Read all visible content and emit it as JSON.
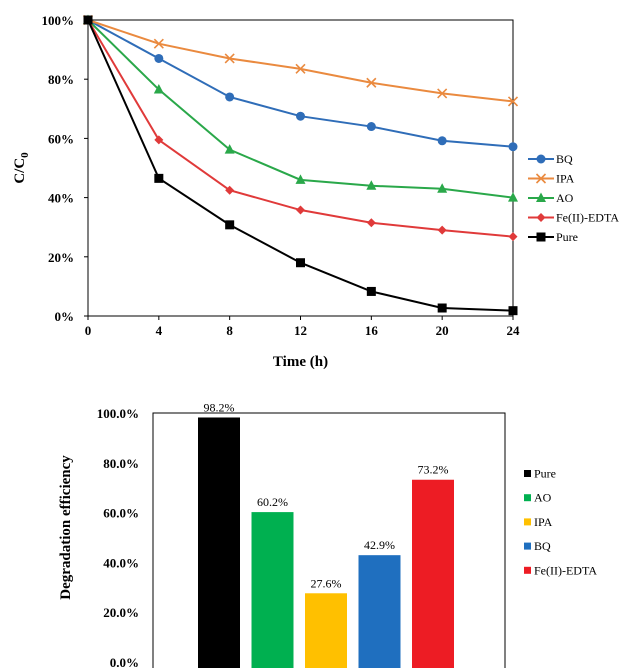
{
  "chart_data": [
    {
      "type": "line",
      "xlabel": "Time (h)",
      "ylabel_main": "C/C",
      "ylabel_sub": "0",
      "x": [
        0,
        4,
        8,
        12,
        16,
        20,
        24
      ],
      "xlim": [
        0,
        24
      ],
      "ylim": [
        0,
        100
      ],
      "x_ticks": [
        "0",
        "4",
        "8",
        "12",
        "16",
        "20",
        "24"
      ],
      "y_ticks": [
        "0%",
        "20%",
        "40%",
        "60%",
        "80%",
        "100%"
      ],
      "grid": false,
      "legend_position": "right",
      "series": [
        {
          "name": "BQ",
          "color": "#2f6db8",
          "marker": "circle",
          "values": [
            100,
            87,
            74,
            67.5,
            64,
            59.2,
            57.2
          ]
        },
        {
          "name": "IPA",
          "color": "#ea8a3f",
          "marker": "x",
          "values": [
            100,
            92,
            87,
            83.5,
            78.8,
            75.2,
            72.5
          ]
        },
        {
          "name": "AO",
          "color": "#2aa84a",
          "marker": "triangle",
          "values": [
            100,
            76.5,
            56.2,
            46,
            44,
            43,
            40
          ]
        },
        {
          "name": "Fe(II)-EDTA",
          "color": "#e03a3a",
          "marker": "diamond",
          "values": [
            100,
            59.5,
            42.5,
            35.8,
            31.5,
            29,
            26.8
          ]
        },
        {
          "name": "Pure",
          "color": "#000000",
          "marker": "square",
          "values": [
            100,
            46.5,
            30.8,
            18,
            8.3,
            2.7,
            1.8
          ]
        }
      ]
    },
    {
      "type": "bar",
      "ylabel": "Degradation efficiency",
      "ylim": [
        0,
        100
      ],
      "y_ticks": [
        "0.0%",
        "20.0%",
        "40.0%",
        "60.0%",
        "80.0%",
        "100.0%"
      ],
      "legend_position": "right",
      "series": [
        {
          "name": "Pure",
          "color": "#000000",
          "value": 98.2,
          "label": "98.2%"
        },
        {
          "name": "AO",
          "color": "#00b050",
          "value": 60.2,
          "label": "60.2%"
        },
        {
          "name": "IPA",
          "color": "#ffc000",
          "value": 27.6,
          "label": "27.6%"
        },
        {
          "name": "BQ",
          "color": "#1f6fbf",
          "value": 42.9,
          "label": "42.9%"
        },
        {
          "name": "Fe(II)-EDTA",
          "color": "#ed1c24",
          "value": 73.2,
          "label": "73.2%"
        }
      ]
    }
  ]
}
